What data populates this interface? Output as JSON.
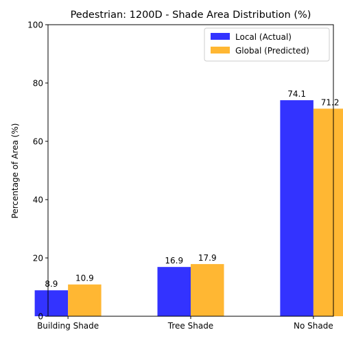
{
  "chart_data": {
    "type": "bar",
    "title": "Pedestrian: 1200D - Shade Area Distribution (%)",
    "xlabel": "",
    "ylabel": "Percentage of Area (%)",
    "ylim": [
      0,
      100
    ],
    "yticks": [
      0,
      20,
      40,
      60,
      80,
      100
    ],
    "categories": [
      "Building Shade",
      "Tree Shade",
      "No Shade"
    ],
    "series": [
      {
        "name": "Local (Actual)",
        "values": [
          8.9,
          16.9,
          74.1
        ],
        "color": "#0000ff"
      },
      {
        "name": "Global (Predicted)",
        "values": [
          10.9,
          17.9,
          71.2
        ],
        "color": "#ffa500"
      }
    ],
    "bar_opacity": 0.8,
    "data_labels": true,
    "grid": false,
    "legend_position": "top-right"
  }
}
